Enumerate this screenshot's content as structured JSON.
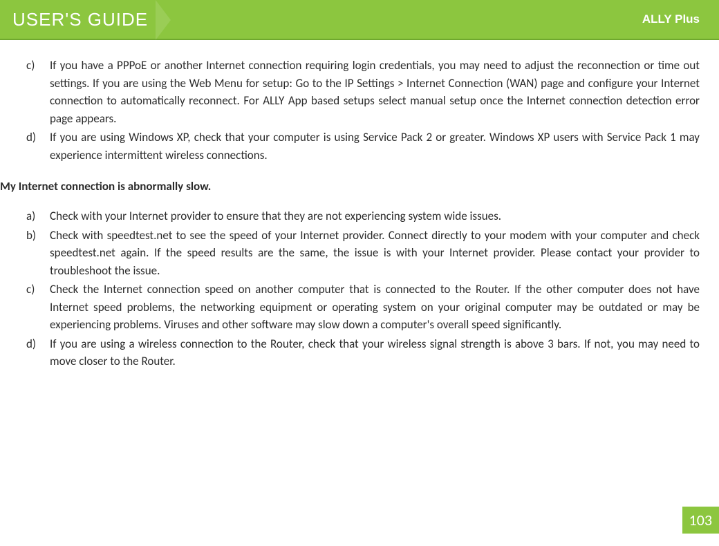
{
  "header": {
    "title": "USER'S GUIDE",
    "product": "ALLY Plus",
    "background_color": "#8cc63f",
    "border_color": "#6fa82e",
    "text_color": "#ffffff"
  },
  "section1": {
    "items": [
      {
        "marker": "c)",
        "text": "If you have a PPPoE or another Internet connection requiring login credentials, you may need to adjust the reconnection or time out settings. If you are using the Web Menu for setup: Go to the IP Settings > Internet Connection (WAN) page and configure your Internet connection to automatically reconnect. For ALLY App based setups select manual setup once the Internet connection detection error page appears."
      },
      {
        "marker": "d)",
        "text": "If you are using Windows XP, check that your computer is using Service Pack 2 or greater. Windows XP users with Service Pack 1 may experience intermittent wireless connections."
      }
    ]
  },
  "section2_heading": "My Internet connection is abnormally slow.",
  "section2": {
    "items": [
      {
        "marker": "a)",
        "text": "Check with your Internet provider to ensure that they are not experiencing system wide issues."
      },
      {
        "marker": "b)",
        "text": "Check with speedtest.net to see the speed of your Internet provider. Connect directly to your modem with your computer and check speedtest.net again. If the speed results are the same, the issue is with your Internet provider. Please contact your provider to troubleshoot the issue."
      },
      {
        "marker": "c)",
        "text": "Check the Internet connection speed on another computer that is connected to the Router. If the other computer does not have Internet speed problems, the networking equipment or operating system on your original computer may be outdated or may be experiencing problems.  Viruses and other software may slow down a computer's overall speed significantly."
      },
      {
        "marker": "d)",
        "text": "If you are using a wireless connection to the Router, check that your wireless signal strength is above 3 bars. If not, you may need to move closer to the Router."
      }
    ]
  },
  "page_number": "103"
}
